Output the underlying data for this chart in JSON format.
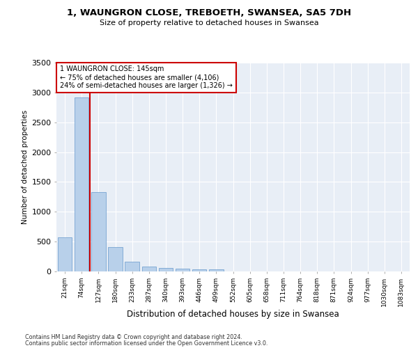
{
  "title_line1": "1, WAUNGRON CLOSE, TREBOETH, SWANSEA, SA5 7DH",
  "title_line2": "Size of property relative to detached houses in Swansea",
  "xlabel": "Distribution of detached houses by size in Swansea",
  "ylabel": "Number of detached properties",
  "footer_line1": "Contains HM Land Registry data © Crown copyright and database right 2024.",
  "footer_line2": "Contains public sector information licensed under the Open Government Licence v3.0.",
  "categories": [
    "21sqm",
    "74sqm",
    "127sqm",
    "180sqm",
    "233sqm",
    "287sqm",
    "340sqm",
    "393sqm",
    "446sqm",
    "499sqm",
    "552sqm",
    "605sqm",
    "658sqm",
    "711sqm",
    "764sqm",
    "818sqm",
    "871sqm",
    "924sqm",
    "977sqm",
    "1030sqm",
    "1083sqm"
  ],
  "bar_values": [
    570,
    2920,
    1330,
    410,
    165,
    80,
    55,
    45,
    40,
    30,
    0,
    0,
    0,
    0,
    0,
    0,
    0,
    0,
    0,
    0,
    0
  ],
  "bar_color": "#b8d0ea",
  "bar_edge_color": "#6699cc",
  "background_color": "#e8eef6",
  "grid_color": "#ffffff",
  "annotation_text": "1 WAUNGRON CLOSE: 145sqm\n← 75% of detached houses are smaller (4,106)\n24% of semi-detached houses are larger (1,326) →",
  "annotation_box_color": "#ffffff",
  "annotation_box_edge_color": "#cc0000",
  "vline_x": 1.5,
  "vline_color": "#cc0000",
  "ylim": [
    0,
    3500
  ],
  "yticks": [
    0,
    500,
    1000,
    1500,
    2000,
    2500,
    3000,
    3500
  ]
}
